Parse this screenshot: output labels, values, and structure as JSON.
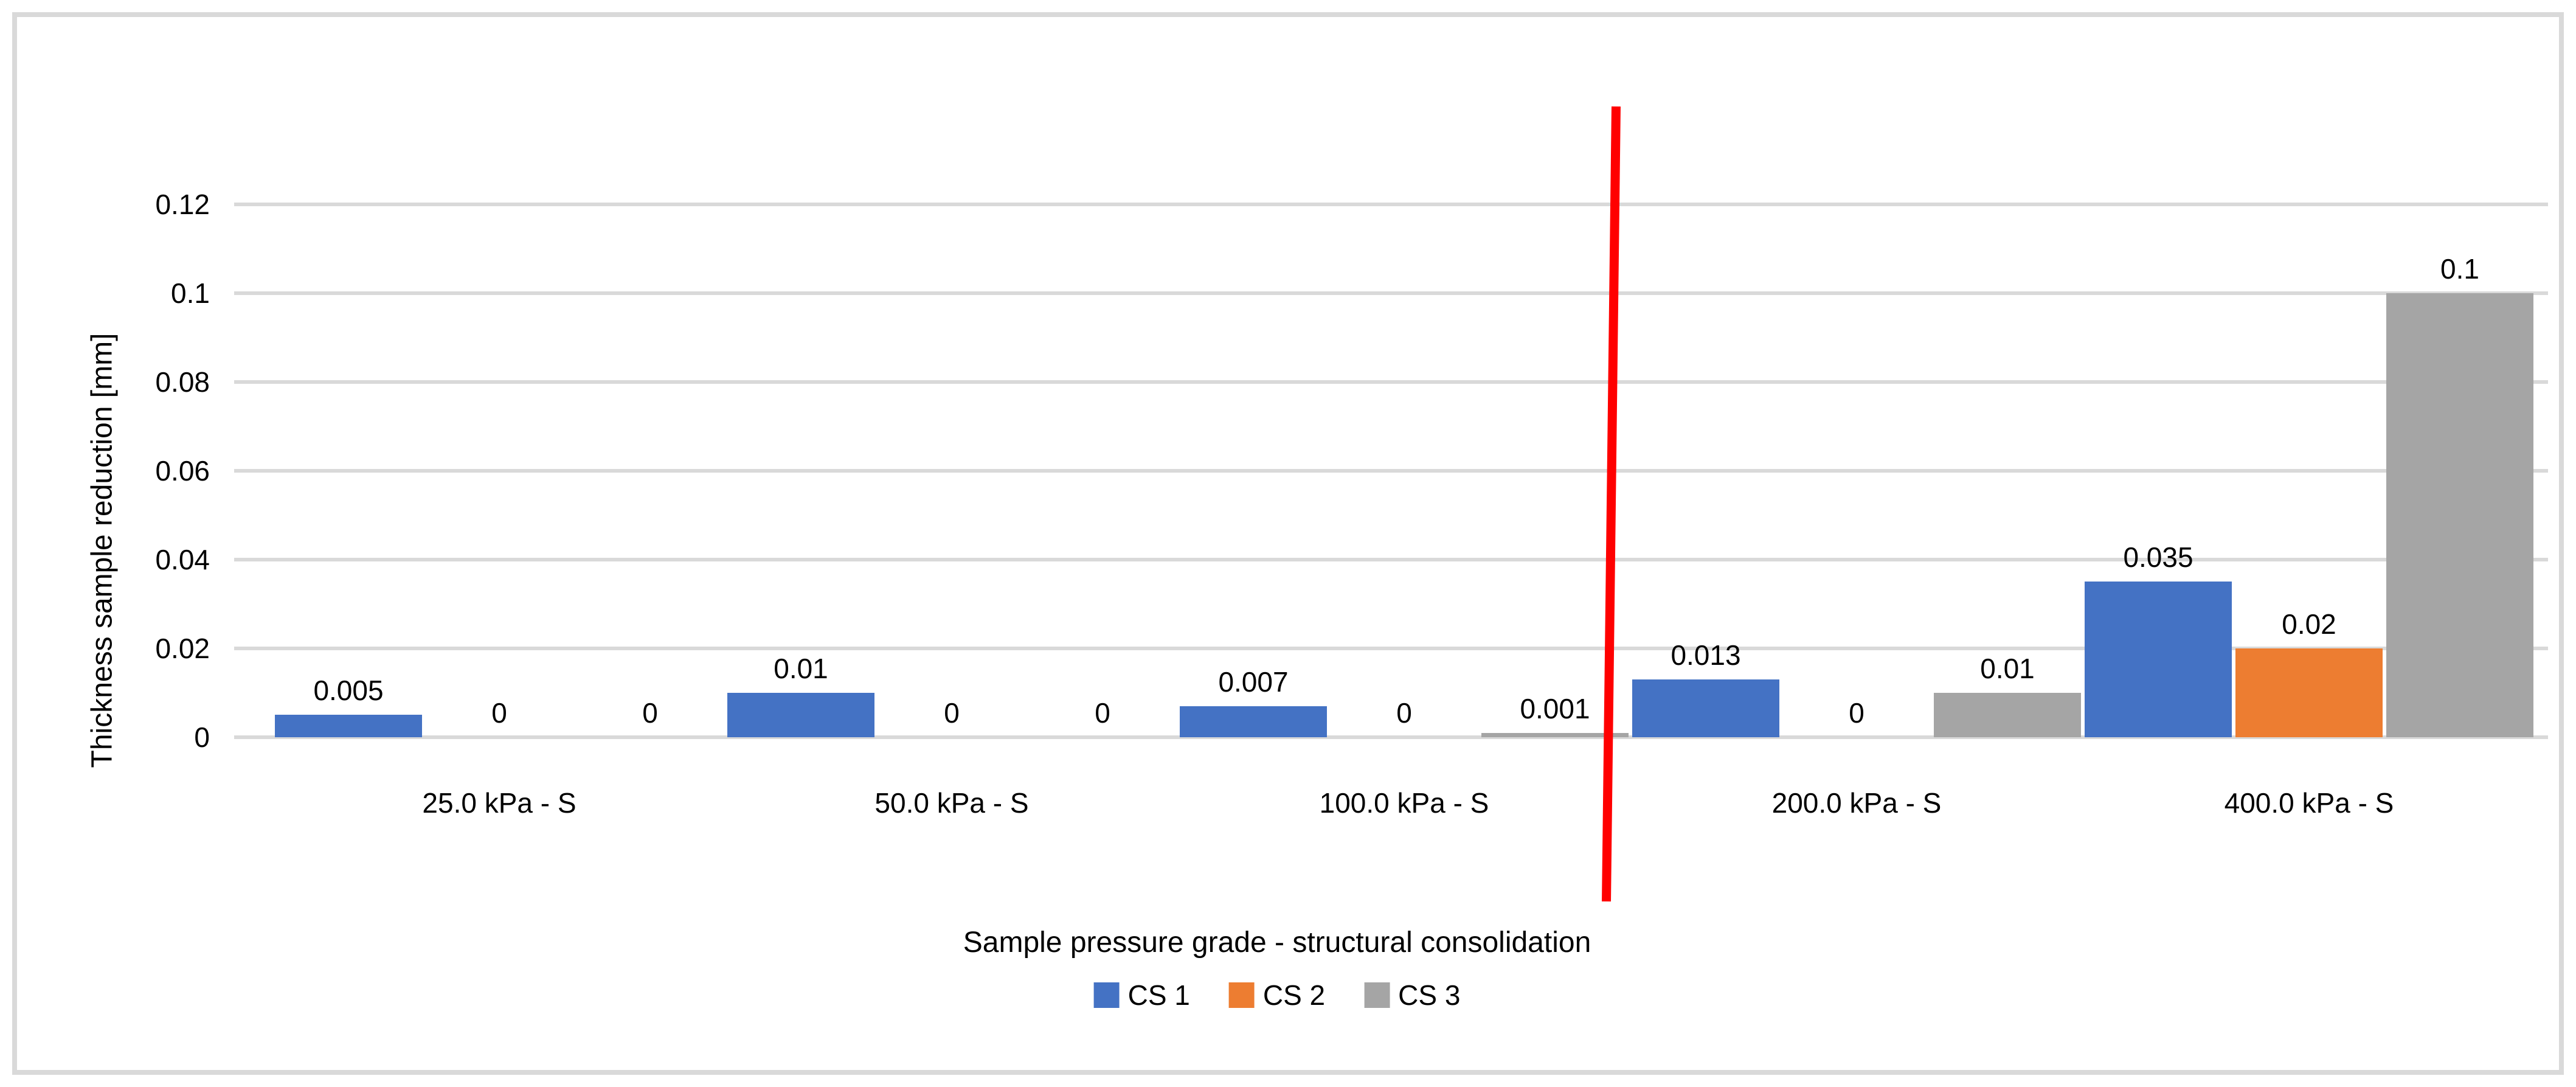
{
  "figure": {
    "background": "#FFFFFF",
    "border_color": "#D9D9D9",
    "text_color": "#000000"
  },
  "chart_data": {
    "type": "bar",
    "title": "",
    "xlabel": "Sample pressure grade - structural consolidation",
    "ylabel": "Thickness sample reduction [mm]",
    "categories": [
      "25.0 kPa - S",
      "50.0 kPa - S",
      "100.0 kPa - S",
      "200.0 kPa - S",
      "400.0 kPa - S"
    ],
    "series": [
      {
        "name": "CS 1",
        "color": "#4472C4",
        "values": [
          0.005,
          0.01,
          0.007,
          0.013,
          0.035
        ],
        "labels": [
          "0.005",
          "0.01",
          "0.007",
          "0.013",
          "0.035"
        ]
      },
      {
        "name": "CS 2",
        "color": "#ED7D31",
        "values": [
          0,
          0,
          0,
          0,
          0.02
        ],
        "labels": [
          "0",
          "0",
          "0",
          "0",
          "0.02"
        ]
      },
      {
        "name": "CS 3",
        "color": "#A5A5A5",
        "values": [
          0,
          0,
          0.001,
          0.01,
          0.1
        ],
        "labels": [
          "0",
          "0",
          "0.001",
          "0.01",
          "0.1"
        ]
      }
    ],
    "y_tick_labels": [
      "0",
      "0.02",
      "0.04",
      "0.06",
      "0.08",
      "0.1",
      "0.12"
    ],
    "ylim": [
      0,
      0.13
    ],
    "grid": true,
    "gridline_color": "#D9D9D9",
    "legend_position": "bottom-center",
    "legend_entries": [
      "CS 1",
      "CS 2",
      "CS 3"
    ],
    "annotations": [
      {
        "type": "vertical-line",
        "color": "#FF0000",
        "between_categories": [
          "100.0 kPa - S",
          "200.0 kPa - S"
        ],
        "note": "hand-drawn red divider line separating the first three pressure grades from the last two"
      }
    ]
  }
}
